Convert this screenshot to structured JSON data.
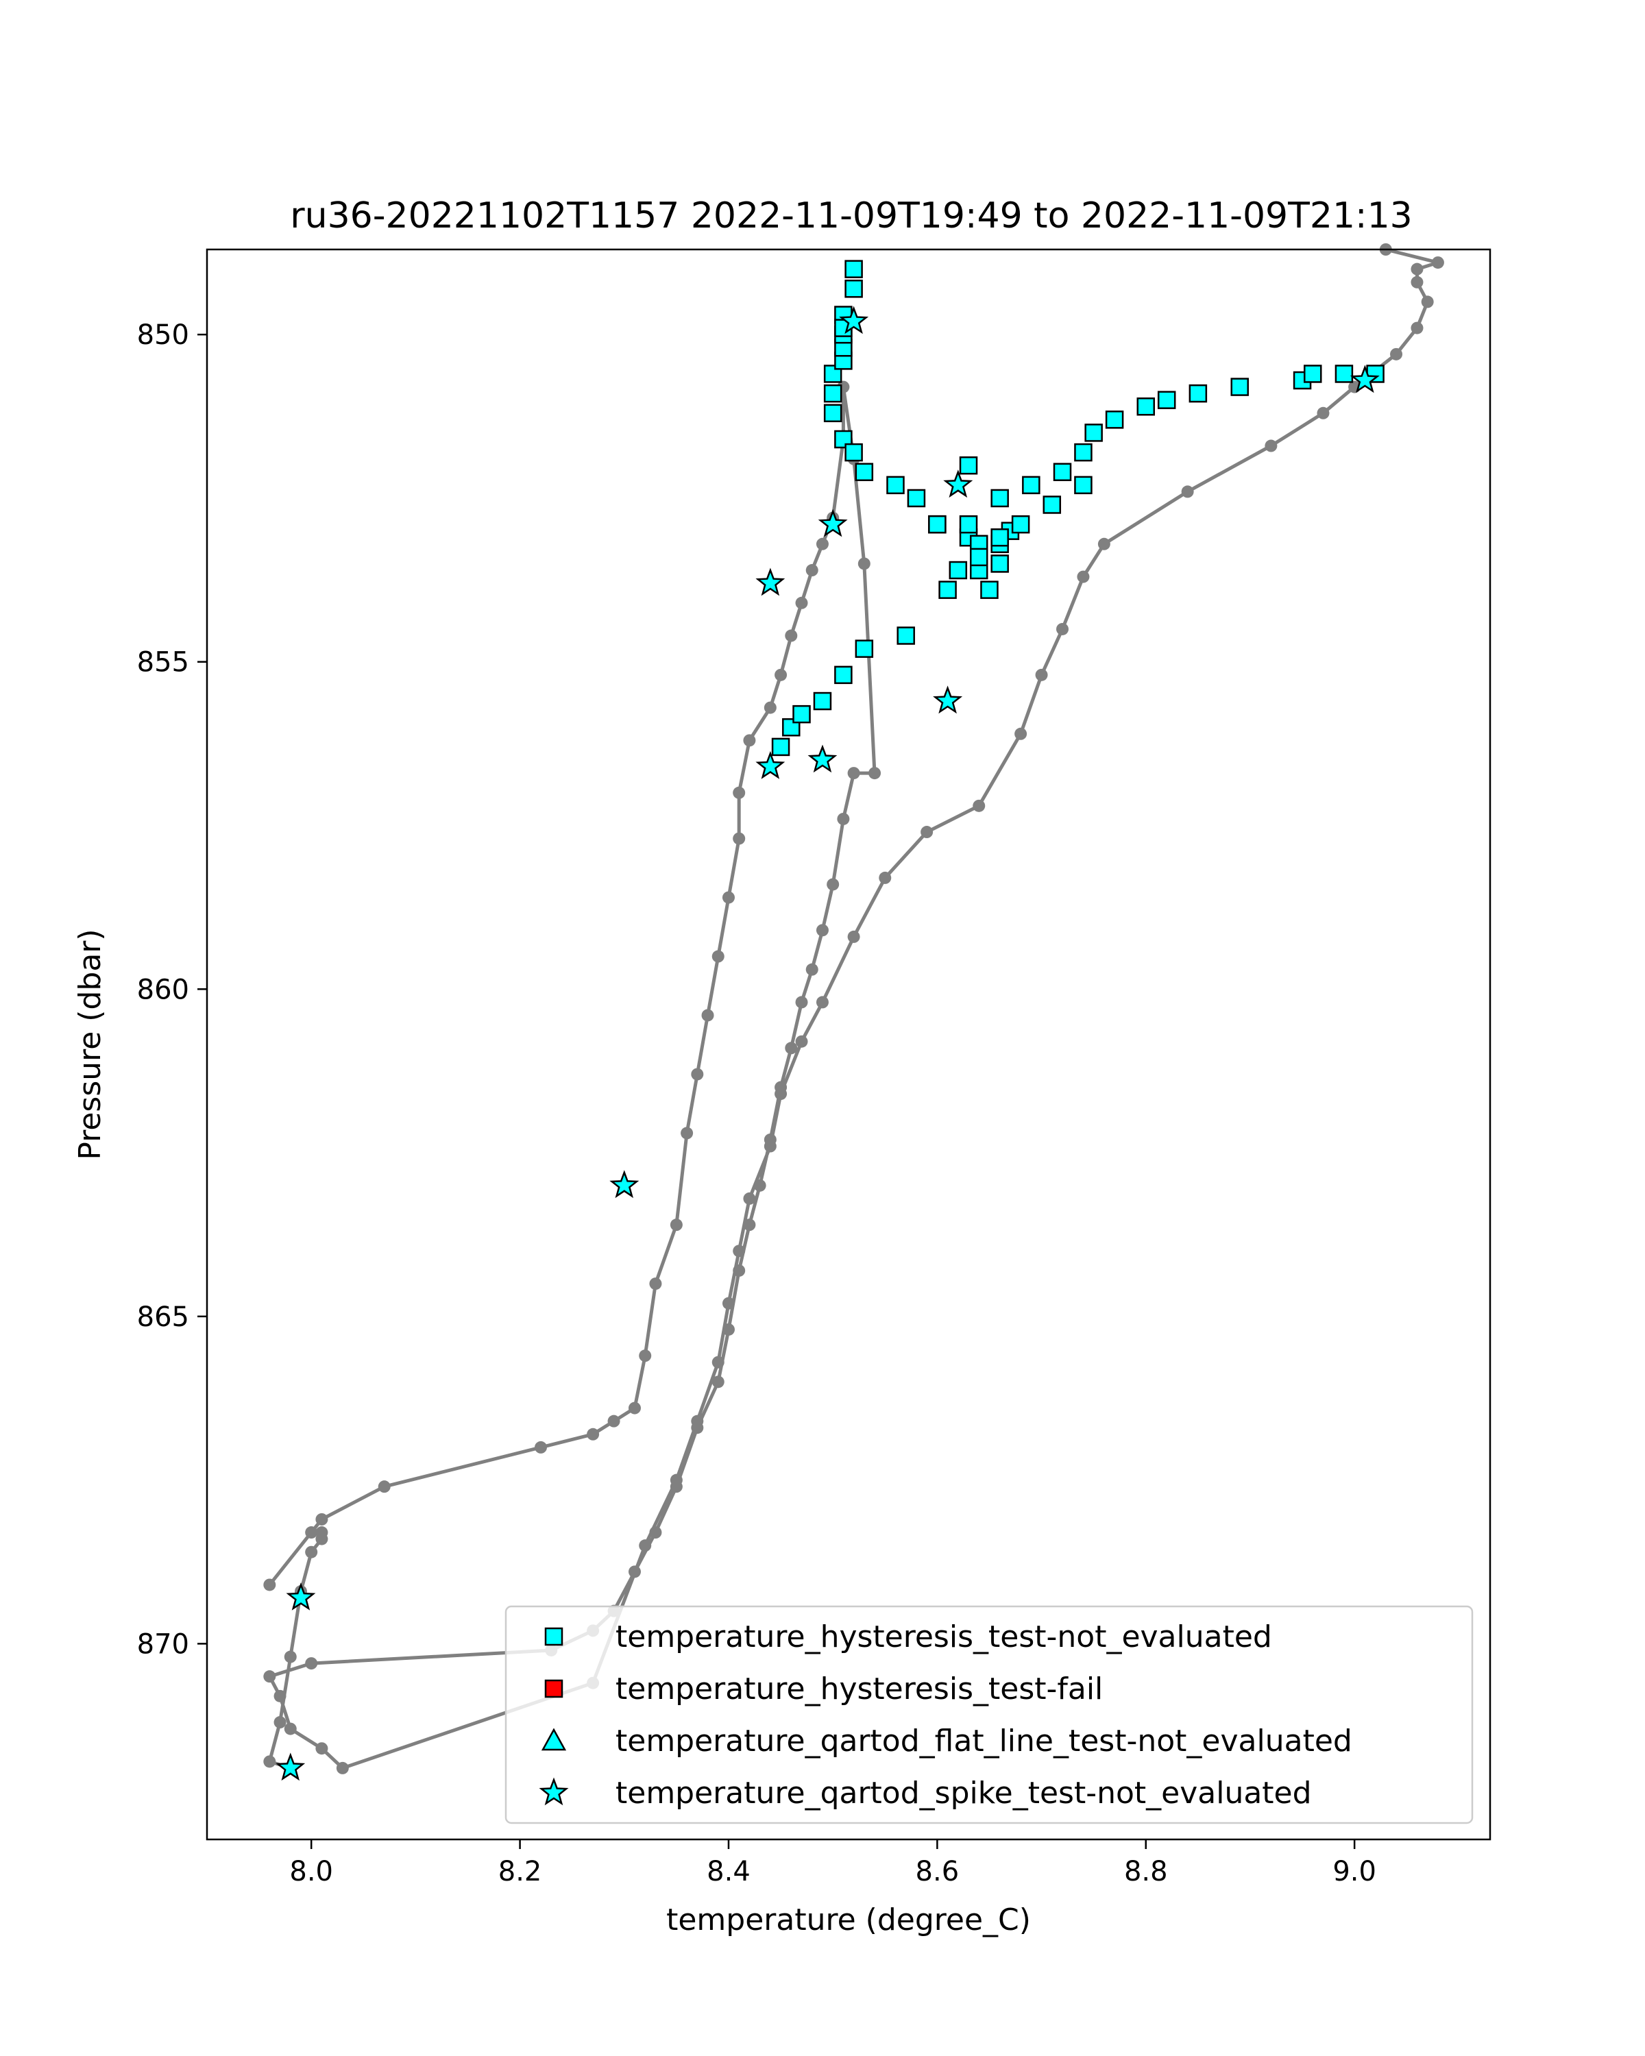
{
  "chart_data": {
    "type": "scatter",
    "title": "ru36-20221102T1157 2022-11-09T19:49 to 2022-11-09T21:13",
    "xlabel": "temperature (degree_C)",
    "ylabel": "Pressure (dbar)",
    "xlim": [
      7.9,
      9.13
    ],
    "ylim": [
      872.99,
      848.7
    ],
    "y_inverted": true,
    "xticks": [
      8.0,
      8.2,
      8.4,
      8.6,
      8.8,
      9.0
    ],
    "xtick_labels": [
      "8.0",
      "8.2",
      "8.4",
      "8.6",
      "8.8",
      "9.0"
    ],
    "yticks": [
      850,
      855,
      860,
      865,
      870
    ],
    "ytick_labels": [
      "850",
      "855",
      "860",
      "865",
      "870"
    ],
    "grid": false,
    "legend_position": "lower-right",
    "colors": {
      "profile": "#808080",
      "not_evaluated": "#00ffff",
      "fail": "#ff0000",
      "edge": "#000000"
    },
    "profile_line": {
      "x": [
        7.98,
        7.96,
        7.97,
        7.98,
        7.99,
        8.0,
        8.01,
        8.01,
        8.0,
        7.96,
        8.01,
        8.07,
        8.22,
        8.27,
        8.29,
        8.31,
        8.32,
        8.33,
        8.35,
        8.36,
        8.37,
        8.38,
        8.39,
        8.4,
        8.41,
        8.41,
        8.42,
        8.44,
        8.45,
        8.46,
        8.47,
        8.48,
        8.49,
        8.5,
        8.51,
        8.51,
        8.52,
        8.53,
        8.54,
        8.52,
        8.51,
        8.5,
        8.49,
        8.48,
        8.47,
        8.46,
        8.45,
        8.44,
        8.43,
        8.42,
        8.41,
        8.4,
        8.39,
        8.37,
        8.35,
        8.33,
        8.31,
        8.29,
        8.27,
        8.23,
        8.0,
        7.96,
        7.97,
        7.98,
        8.01,
        8.03,
        8.27,
        8.32,
        8.35,
        8.37,
        8.39,
        8.4,
        8.41,
        8.42,
        8.44,
        8.45,
        8.47,
        8.49,
        8.52,
        8.55,
        8.59,
        8.64,
        8.68,
        8.7,
        8.72,
        8.74,
        8.76,
        8.84,
        8.92,
        8.97,
        9.0,
        9.04,
        9.06,
        9.07,
        9.06,
        9.06,
        9.08,
        9.03
      ],
      "y": [
        871.9,
        871.8,
        871.2,
        870.2,
        869.2,
        868.6,
        868.4,
        868.3,
        868.3,
        869.1,
        868.1,
        867.6,
        867.0,
        866.8,
        866.6,
        866.4,
        865.6,
        864.5,
        863.6,
        862.2,
        861.3,
        860.4,
        859.5,
        858.6,
        857.7,
        857.0,
        856.2,
        855.7,
        855.2,
        854.6,
        854.1,
        853.6,
        853.2,
        852.8,
        851.6,
        850.8,
        851.9,
        853.5,
        856.7,
        856.7,
        857.4,
        858.4,
        859.1,
        859.7,
        860.2,
        860.9,
        861.5,
        862.3,
        863.0,
        863.6,
        864.3,
        865.2,
        866.0,
        866.7,
        867.6,
        868.3,
        868.9,
        869.5,
        869.8,
        870.1,
        870.3,
        870.5,
        870.8,
        871.3,
        871.6,
        871.9,
        870.6,
        868.5,
        867.5,
        866.6,
        865.7,
        864.8,
        864.0,
        863.2,
        862.4,
        861.6,
        860.8,
        860.2,
        859.2,
        858.3,
        857.6,
        857.2,
        856.1,
        855.2,
        854.5,
        853.7,
        853.2,
        852.4,
        851.7,
        851.2,
        850.8,
        850.3,
        849.9,
        849.5,
        849.2,
        849.0,
        848.9,
        848.7
      ]
    },
    "hysteresis_not_evaluated": {
      "x": [
        8.45,
        8.46,
        8.47,
        8.49,
        8.51,
        8.53,
        8.57,
        8.61,
        8.63,
        8.64,
        8.65,
        8.66,
        8.66,
        8.67,
        8.64,
        8.6,
        8.58,
        8.56,
        8.53,
        8.51,
        8.5,
        8.5,
        8.5,
        8.51,
        8.51,
        8.51,
        8.51,
        8.52,
        8.52,
        8.51,
        8.6,
        8.63,
        8.66,
        8.69,
        8.72,
        8.74,
        8.75,
        8.77,
        8.8,
        8.82,
        8.85,
        8.89,
        8.95,
        8.96,
        8.99,
        9.02,
        8.63,
        8.74,
        8.71,
        8.68,
        8.66,
        8.64,
        8.62,
        8.52
      ],
      "y": [
        856.3,
        856.0,
        855.8,
        855.6,
        855.2,
        854.8,
        854.6,
        853.9,
        853.1,
        853.6,
        853.9,
        853.5,
        853.2,
        853.0,
        853.2,
        852.9,
        852.5,
        852.3,
        852.1,
        851.6,
        851.2,
        850.9,
        850.6,
        850.4,
        850.2,
        850.0,
        849.7,
        849.3,
        849.0,
        849.9,
        852.9,
        852.9,
        852.5,
        852.3,
        852.1,
        851.8,
        851.5,
        851.3,
        851.1,
        851.0,
        850.9,
        850.8,
        850.7,
        850.6,
        850.6,
        850.6,
        852.0,
        852.3,
        852.6,
        852.9,
        853.1,
        853.4,
        853.6,
        851.8
      ]
    },
    "hysteresis_fail": {
      "x": [],
      "y": []
    },
    "flat_line_not_evaluated": {
      "x": [],
      "y": []
    },
    "spike_not_evaluated": {
      "x": [
        8.52,
        8.62,
        8.5,
        8.44,
        8.61,
        8.44,
        8.49,
        8.3,
        7.99,
        7.98,
        9.01
      ],
      "y": [
        849.8,
        852.3,
        852.9,
        853.8,
        855.6,
        856.6,
        856.5,
        863.0,
        869.3,
        871.9,
        850.7
      ]
    },
    "legend": [
      {
        "key": "hysteresis_not_evaluated",
        "label": "temperature_hysteresis_test-not_evaluated",
        "marker": "square",
        "color": "#00ffff"
      },
      {
        "key": "hysteresis_fail",
        "label": "temperature_hysteresis_test-fail",
        "marker": "square",
        "color": "#ff0000"
      },
      {
        "key": "flat_line_not_evaluated",
        "label": "temperature_qartod_flat_line_test-not_evaluated",
        "marker": "triangle",
        "color": "#00ffff"
      },
      {
        "key": "spike_not_evaluated",
        "label": "temperature_qartod_spike_test-not_evaluated",
        "marker": "star",
        "color": "#00ffff"
      }
    ]
  }
}
